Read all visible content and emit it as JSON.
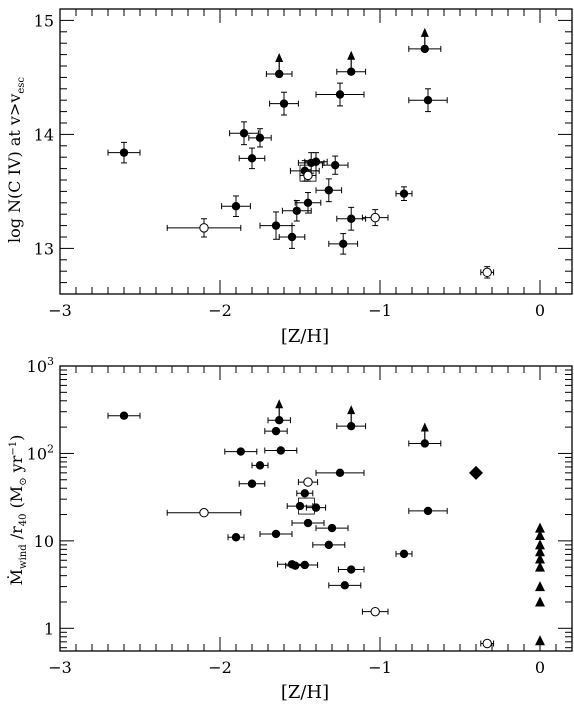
{
  "chart_data": [
    {
      "type": "scatter",
      "xlabel": "[Z/H]",
      "ylabel_main": "log N(C IV) at v>v",
      "ylabel_sub": "esc",
      "xlim": [
        -3,
        0.2
      ],
      "ylim": [
        12.6,
        15.1
      ],
      "x_ticks": [
        {
          "v": -3,
          "label": "−3"
        },
        {
          "v": -2,
          "label": "−2"
        },
        {
          "v": -1,
          "label": "−1"
        },
        {
          "v": 0,
          "label": "0"
        }
      ],
      "y_ticks": [
        {
          "v": 13,
          "label": "13"
        },
        {
          "v": 14,
          "label": "14"
        },
        {
          "v": 15,
          "label": "15"
        }
      ],
      "filled": [
        {
          "x": -2.6,
          "y": 13.84,
          "xerr": 0.1,
          "yerr": 0.09
        },
        {
          "x": -1.9,
          "y": 13.37,
          "xerr": 0.09,
          "yerr": 0.09
        },
        {
          "x": -1.85,
          "y": 14.01,
          "xerr": 0.09,
          "yerr": 0.1
        },
        {
          "x": -1.8,
          "y": 13.79,
          "xerr": 0.08,
          "yerr": 0.09
        },
        {
          "x": -1.75,
          "y": 13.97,
          "xerr": 0.07,
          "yerr": 0.08
        },
        {
          "x": -1.65,
          "y": 13.2,
          "xerr": 0.1,
          "yerr": 0.12
        },
        {
          "x": -1.6,
          "y": 14.27,
          "xerr": 0.09,
          "yerr": 0.1
        },
        {
          "x": -1.55,
          "y": 13.1,
          "xerr": 0.08,
          "yerr": 0.1
        },
        {
          "x": -1.52,
          "y": 13.33,
          "xerr": 0.09,
          "yerr": 0.09
        },
        {
          "x": -1.47,
          "y": 13.68,
          "xerr": 0.09,
          "yerr": 0.09
        },
        {
          "x": -1.45,
          "y": 13.4,
          "xerr": 0.08,
          "yerr": 0.09
        },
        {
          "x": -1.43,
          "y": 13.75,
          "xerr": 0.08,
          "yerr": 0.09
        },
        {
          "x": -1.4,
          "y": 13.76,
          "xerr": 0.07,
          "yerr": 0.08
        },
        {
          "x": -1.32,
          "y": 13.51,
          "xerr": 0.08,
          "yerr": 0.1
        },
        {
          "x": -1.28,
          "y": 13.73,
          "xerr": 0.08,
          "yerr": 0.08
        },
        {
          "x": -1.25,
          "y": 14.35,
          "xerr": 0.15,
          "yerr": 0.1
        },
        {
          "x": -1.23,
          "y": 13.04,
          "xerr": 0.09,
          "yerr": 0.09
        },
        {
          "x": -1.18,
          "y": 13.26,
          "xerr": 0.09,
          "yerr": 0.1
        },
        {
          "x": -0.85,
          "y": 13.48,
          "xerr": 0.05,
          "yerr": 0.06
        },
        {
          "x": -0.7,
          "y": 14.3,
          "xerr": 0.12,
          "yerr": 0.1
        }
      ],
      "open": [
        {
          "x": -2.1,
          "y": 13.18,
          "xerr": 0.23,
          "yerr": 0.08
        },
        {
          "x": -1.45,
          "y": 13.64,
          "xerr": 0.05,
          "yerr": 0.05
        },
        {
          "x": -1.03,
          "y": 13.27,
          "xerr": 0.08,
          "yerr": 0.07
        },
        {
          "x": -0.33,
          "y": 12.79,
          "xerr": 0.04,
          "yerr": 0.05
        }
      ],
      "lower_limits": [
        {
          "x": -1.63,
          "y": 14.53,
          "xerr": 0.08
        },
        {
          "x": -1.18,
          "y": 14.55,
          "xerr": 0.09
        },
        {
          "x": -0.72,
          "y": 14.75,
          "xerr": 0.1
        }
      ],
      "boxes": [
        {
          "x": -1.45,
          "y": 13.66
        }
      ]
    },
    {
      "type": "scatter",
      "xlabel": "[Z/H]",
      "ylabel_main": "Ṁ",
      "ylabel_sub1": "wind",
      "ylabel_mid": " /r",
      "ylabel_sub2": "40",
      "ylabel_tail": "  (M",
      "ylabel_sun": "⊙",
      "ylabel_end": " yr",
      "ylabel_sup": "−1",
      "ylabel_close": ")",
      "xlim": [
        -3,
        0.2
      ],
      "yscale": "log",
      "ylim": [
        0.55,
        1000
      ],
      "x_ticks": [
        {
          "v": -3,
          "label": "−3"
        },
        {
          "v": -2,
          "label": "−2"
        },
        {
          "v": -1,
          "label": "−1"
        },
        {
          "v": 0,
          "label": "0"
        }
      ],
      "y_ticks": [
        {
          "v": 1,
          "label": "1"
        },
        {
          "v": 10,
          "label": "10"
        },
        {
          "v": 100,
          "label": "10",
          "sup": "2"
        },
        {
          "v": 1000,
          "label": "10",
          "sup": "3"
        }
      ],
      "filled": [
        {
          "x": -2.6,
          "y": 270,
          "xerr": 0.1
        },
        {
          "x": -1.9,
          "y": 11,
          "xerr": 0.05
        },
        {
          "x": -1.87,
          "y": 105,
          "xerr": 0.1
        },
        {
          "x": -1.8,
          "y": 45,
          "xerr": 0.08
        },
        {
          "x": -1.75,
          "y": 73,
          "xerr": 0.05
        },
        {
          "x": -1.65,
          "y": 12,
          "xerr": 0.1
        },
        {
          "x": -1.65,
          "y": 180,
          "xerr": 0.07
        },
        {
          "x": -1.62,
          "y": 108,
          "xerr": 0.1
        },
        {
          "x": -1.55,
          "y": 5.4,
          "xerr": 0.09
        },
        {
          "x": -1.53,
          "y": 5.2,
          "xerr": 0.06
        },
        {
          "x": -1.5,
          "y": 25,
          "xerr": 0.08
        },
        {
          "x": -1.47,
          "y": 5.3,
          "xerr": 0.08
        },
        {
          "x": -1.47,
          "y": 35,
          "xerr": 0.05
        },
        {
          "x": -1.45,
          "y": 16,
          "xerr": 0.1
        },
        {
          "x": -1.4,
          "y": 24,
          "xerr": 0.06
        },
        {
          "x": -1.32,
          "y": 9,
          "xerr": 0.1
        },
        {
          "x": -1.3,
          "y": 14,
          "xerr": 0.1
        },
        {
          "x": -1.25,
          "y": 60,
          "xerr": 0.15
        },
        {
          "x": -1.22,
          "y": 3.1,
          "xerr": 0.1
        },
        {
          "x": -1.18,
          "y": 4.7,
          "xerr": 0.08
        },
        {
          "x": -0.85,
          "y": 7.1,
          "xerr": 0.05
        },
        {
          "x": -0.7,
          "y": 22,
          "xerr": 0.12
        }
      ],
      "open": [
        {
          "x": -2.1,
          "y": 21,
          "xerr": 0.23
        },
        {
          "x": -1.45,
          "y": 47,
          "xerr": 0.06
        },
        {
          "x": -1.03,
          "y": 1.55,
          "xerr": 0.08
        },
        {
          "x": -0.33,
          "y": 0.67,
          "xerr": 0.04
        }
      ],
      "lower_limits": [
        {
          "x": -1.63,
          "y": 240,
          "xerr": 0.07
        },
        {
          "x": -1.18,
          "y": 205,
          "xerr": 0.09
        },
        {
          "x": -0.72,
          "y": 130,
          "xerr": 0.1
        }
      ],
      "boxes": [
        {
          "x": -1.46,
          "y": 25
        }
      ],
      "diamonds": [
        {
          "x": -0.4,
          "y": 60
        }
      ],
      "triangles": [
        {
          "x": 0,
          "y": 14
        },
        {
          "x": 0,
          "y": 11.5
        },
        {
          "x": 0,
          "y": 9
        },
        {
          "x": 0,
          "y": 7.5
        },
        {
          "x": 0,
          "y": 6.2
        },
        {
          "x": 0,
          "y": 5
        },
        {
          "x": 0,
          "y": 3
        },
        {
          "x": 0,
          "y": 2
        },
        {
          "x": 0,
          "y": 0.72
        }
      ]
    }
  ]
}
